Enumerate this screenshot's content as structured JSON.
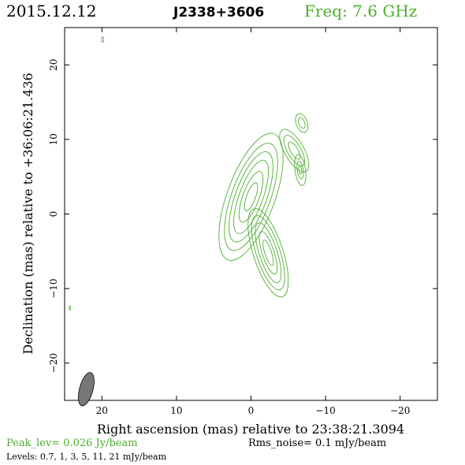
{
  "header": {
    "date": "2015.12.12",
    "source": "J2338+3606",
    "freq": "Freq: 7.6 GHz"
  },
  "colors": {
    "contour": "#4caf2e",
    "beam_fill": "#777777",
    "frame": "#000000"
  },
  "chart_data": {
    "type": "contour",
    "xlabel": "Right ascension (mas) relative to 23:38:21.3094",
    "ylabel": "Declination (mas) relative to +36:06:21.436",
    "xlim": [
      25,
      -25
    ],
    "ylim": [
      -25,
      25
    ],
    "xticks": [
      20,
      10,
      0,
      -10,
      -20
    ],
    "yticks": [
      20,
      10,
      0,
      -10,
      -20
    ],
    "xtick_labels": [
      "20",
      "10",
      "0",
      "−10",
      "−20"
    ],
    "ytick_labels": [
      "20",
      "10",
      "0",
      "−10",
      "−20"
    ],
    "contour_levels_mJy": [
      0.7,
      1,
      3,
      5,
      11,
      21
    ],
    "components": [
      {
        "x": 0.0,
        "y": 2.3,
        "levels": [
          [
            3.2,
            9.0,
            20
          ],
          [
            2.6,
            7.6,
            20
          ],
          [
            2.1,
            6.4,
            20
          ],
          [
            1.6,
            5.2,
            20
          ],
          [
            1.1,
            3.6,
            20
          ],
          [
            0.6,
            2.0,
            20
          ]
        ]
      },
      {
        "x": -2.3,
        "y": -5.2,
        "levels": [
          [
            2.0,
            6.2,
            -18
          ],
          [
            1.6,
            5.2,
            -18
          ],
          [
            1.2,
            4.2,
            -18
          ],
          [
            0.8,
            3.0,
            -18
          ],
          [
            0.45,
            1.8,
            -18
          ]
        ]
      },
      {
        "x": -5.8,
        "y": 8.5,
        "levels": [
          [
            1.3,
            3.2,
            -30
          ],
          [
            0.9,
            2.3,
            -30
          ],
          [
            0.5,
            1.3,
            -30
          ]
        ]
      },
      {
        "x": -6.8,
        "y": 12.2,
        "levels": [
          [
            0.75,
            1.3,
            -20
          ],
          [
            0.4,
            0.75,
            -20
          ]
        ]
      },
      {
        "x": -6.6,
        "y": 5.9,
        "levels": [
          [
            0.7,
            2.1,
            -8
          ],
          [
            0.4,
            1.2,
            -8
          ],
          [
            0.2,
            0.55,
            -8
          ]
        ]
      },
      {
        "x": 19.9,
        "y": 23.4,
        "levels": [
          [
            0.15,
            0.35,
            0
          ]
        ]
      },
      {
        "x": 24.3,
        "y": -12.6,
        "levels": [
          [
            0.1,
            0.3,
            0
          ]
        ]
      }
    ],
    "beam": {
      "x": 22.1,
      "y": -23.5,
      "major": 2.3,
      "minor": 0.9,
      "angle": 15
    }
  },
  "footer": {
    "peak": "Peak_lev=  0.026 Jy/beam",
    "rms": "Rms_noise=  0.1 mJy/beam",
    "levels": "Levels: 0.7,    1,    3,    5,   11,   21  mJy/beam"
  }
}
